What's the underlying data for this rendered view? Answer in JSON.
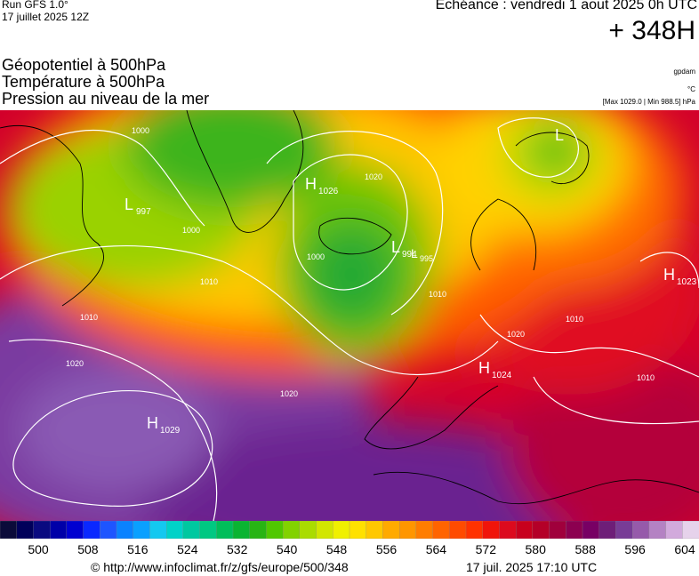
{
  "run": {
    "model": "Run GFS 1.0°",
    "date": "17 juillet 2025 12Z"
  },
  "forecast": {
    "echeance": "Echéance : vendredi 1 aout 2025 0h UTC",
    "lead": "+ 348H"
  },
  "layers": {
    "geopotential": "Géopotentiel à 500hPa",
    "temperature": "Température à 500hPa",
    "pressure": "Pression au niveau de la mer"
  },
  "units": {
    "geopotential": "gpdam",
    "temperature": "°C",
    "pressure": "[Max 1029.0 | Min 988.5] hPa"
  },
  "pressure_centers": [
    {
      "type": "H",
      "value": "1029"
    },
    {
      "type": "H",
      "value": "1024"
    },
    {
      "type": "H",
      "value": "1023"
    },
    {
      "type": "H",
      "value": "1026"
    },
    {
      "type": "L",
      "value": "997"
    },
    {
      "type": "L",
      "value": "994"
    },
    {
      "type": "L",
      "value": "995"
    },
    {
      "type": "L",
      "value": ""
    }
  ],
  "isobar_labels": [
    "1000",
    "1000",
    "1010",
    "1010",
    "1020",
    "1020",
    "1020",
    "1010",
    "1010",
    "1010",
    "1020",
    "1000"
  ],
  "legend": {
    "colors": [
      "#0b0b3a",
      "#00005a",
      "#0a0a80",
      "#0000a8",
      "#0000d0",
      "#0a28ff",
      "#1e55ff",
      "#0a82ff",
      "#0aa0ff",
      "#14c8f0",
      "#00d2c8",
      "#00c8a0",
      "#00c882",
      "#00be5a",
      "#0ab432",
      "#28b414",
      "#50c800",
      "#82d200",
      "#aadc00",
      "#d2e600",
      "#f0f000",
      "#ffe100",
      "#ffc800",
      "#ffaa00",
      "#ff9600",
      "#ff7d00",
      "#ff6400",
      "#ff4b00",
      "#ff3200",
      "#f0140a",
      "#dc0a1e",
      "#c8001e",
      "#b40028",
      "#a0003c",
      "#8c0050",
      "#780064",
      "#6e1e78",
      "#783c96",
      "#965aaa",
      "#b482c3",
      "#d2aadc",
      "#e6d2eb"
    ],
    "ticks": [
      "500",
      "508",
      "516",
      "524",
      "532",
      "540",
      "548",
      "556",
      "564",
      "572",
      "580",
      "588",
      "596",
      "604"
    ]
  },
  "footer": {
    "credit": "© http://www.infoclimat.fr/z/gfs/europe/500/348",
    "generated": "17 juil. 2025 17:10 UTC"
  }
}
